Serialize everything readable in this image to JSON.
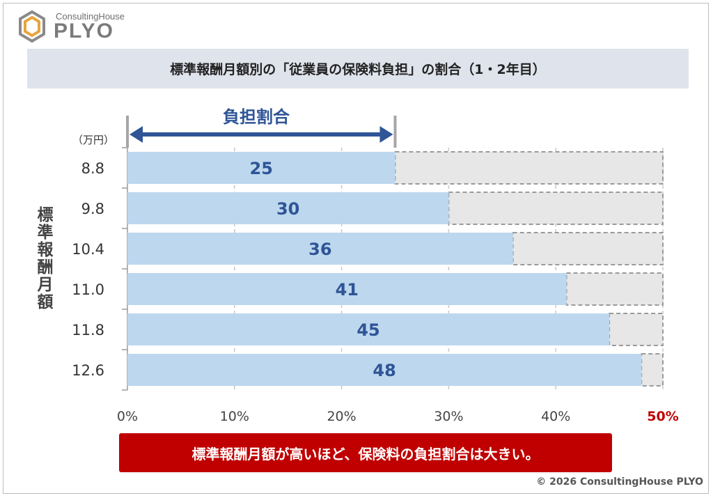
{
  "logo": {
    "small": "ConsultingHouse",
    "big": "PLYO"
  },
  "title": "標準報酬月額別の「従業員の保険料負担」の割合（1・2年目）",
  "chart_data": {
    "type": "bar",
    "orientation": "horizontal",
    "categories": [
      "8.8",
      "9.8",
      "10.4",
      "11.0",
      "11.8",
      "12.6"
    ],
    "values": [
      25,
      30,
      36,
      41,
      45,
      48
    ],
    "remainder_to": 50,
    "xlim": [
      0,
      50
    ],
    "x_ticks": [
      0,
      10,
      20,
      30,
      40,
      50
    ],
    "x_tick_labels": [
      "0%",
      "10%",
      "20%",
      "30%",
      "40%",
      "50%"
    ],
    "highlight_tick": "50%",
    "y_unit": "（万円）",
    "ylabel": "標準報酬月額",
    "span_label": "負担割合",
    "colors": {
      "bar": "#bdd7ee",
      "remainder": "#e7e7e7",
      "value_text": "#2f5597",
      "highlight": "#c00000"
    }
  },
  "note": "標準報酬月額が高いほど、保険料の負担割合は大きい。",
  "copyright": "© 2026 ConsultingHouse PLYO"
}
